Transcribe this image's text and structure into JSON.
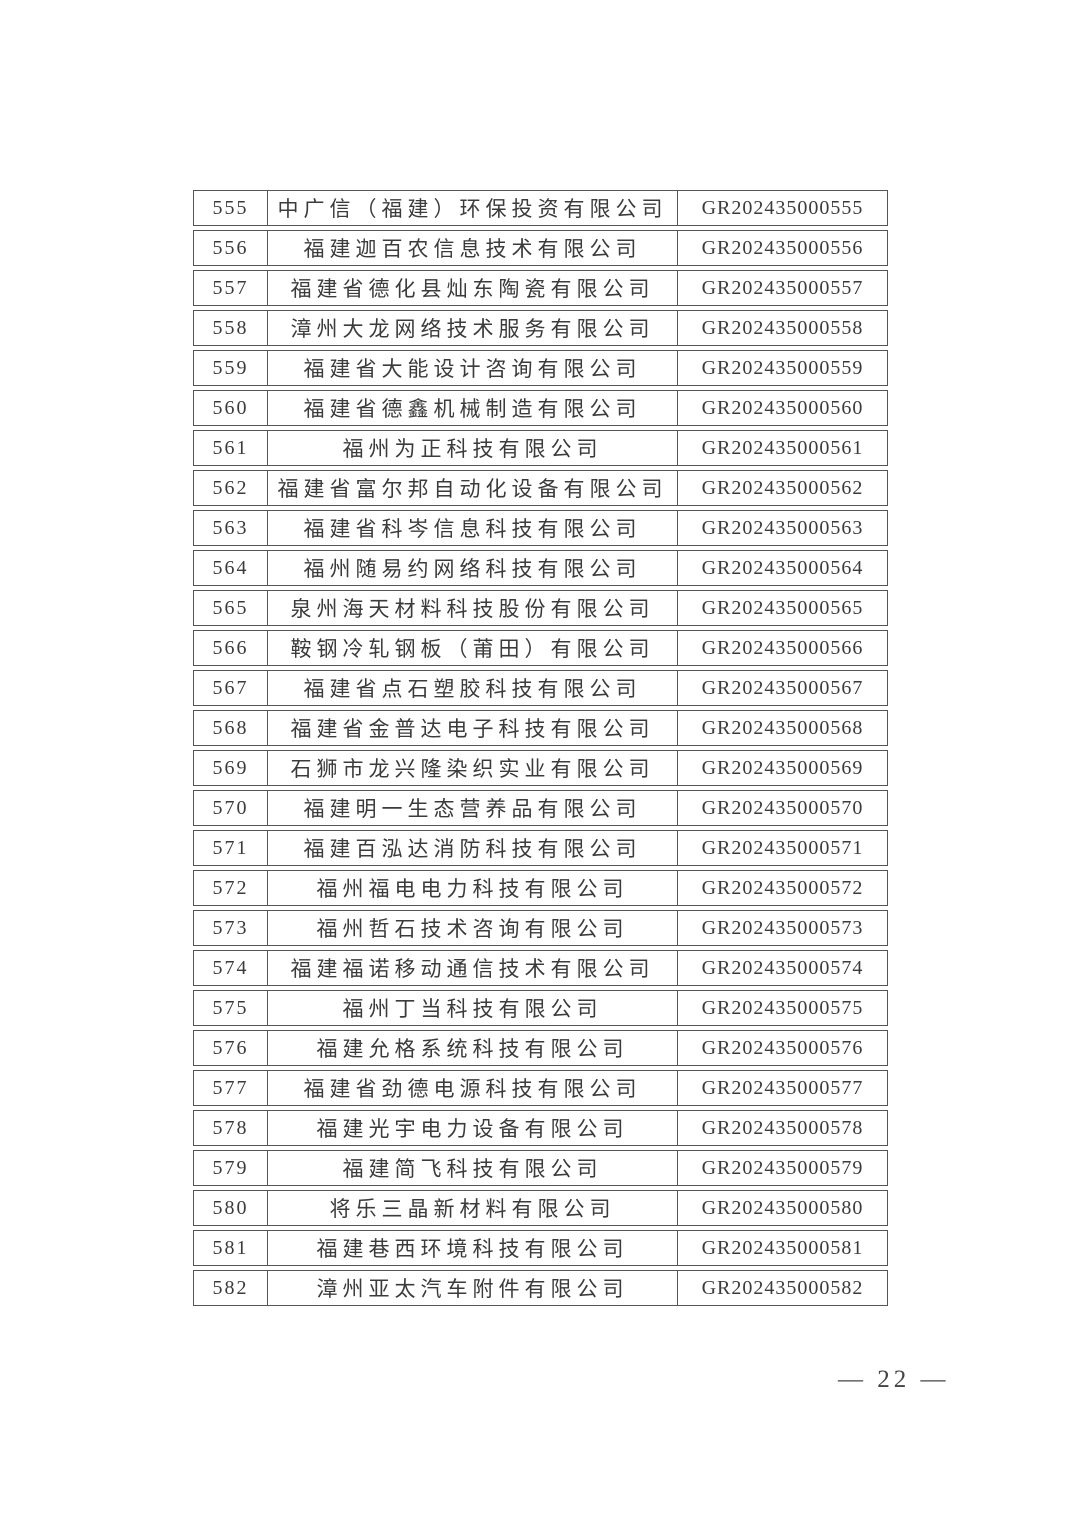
{
  "document": {
    "type": "certified-enterprise-roster-page",
    "text_color": "#3b3b3b",
    "border_color": "#555555",
    "background_color": "#ffffff"
  },
  "table": {
    "columns": [
      "serial_number",
      "company_name",
      "credential_code"
    ],
    "rows": [
      {
        "no": "555",
        "name": "中广信（福建）环保投资有限公司",
        "code": "GR202435000555"
      },
      {
        "no": "556",
        "name": "福建迦百农信息技术有限公司",
        "code": "GR202435000556"
      },
      {
        "no": "557",
        "name": "福建省德化县灿东陶瓷有限公司",
        "code": "GR202435000557"
      },
      {
        "no": "558",
        "name": "漳州大龙网络技术服务有限公司",
        "code": "GR202435000558"
      },
      {
        "no": "559",
        "name": "福建省大能设计咨询有限公司",
        "code": "GR202435000559"
      },
      {
        "no": "560",
        "name": "福建省德鑫机械制造有限公司",
        "code": "GR202435000560"
      },
      {
        "no": "561",
        "name": "福州为正科技有限公司",
        "code": "GR202435000561"
      },
      {
        "no": "562",
        "name": "福建省富尔邦自动化设备有限公司",
        "code": "GR202435000562"
      },
      {
        "no": "563",
        "name": "福建省科岑信息科技有限公司",
        "code": "GR202435000563"
      },
      {
        "no": "564",
        "name": "福州随易约网络科技有限公司",
        "code": "GR202435000564"
      },
      {
        "no": "565",
        "name": "泉州海天材料科技股份有限公司",
        "code": "GR202435000565"
      },
      {
        "no": "566",
        "name": "鞍钢冷轧钢板（莆田）有限公司",
        "code": "GR202435000566"
      },
      {
        "no": "567",
        "name": "福建省点石塑胶科技有限公司",
        "code": "GR202435000567"
      },
      {
        "no": "568",
        "name": "福建省金普达电子科技有限公司",
        "code": "GR202435000568"
      },
      {
        "no": "569",
        "name": "石狮市龙兴隆染织实业有限公司",
        "code": "GR202435000569"
      },
      {
        "no": "570",
        "name": "福建明一生态营养品有限公司",
        "code": "GR202435000570"
      },
      {
        "no": "571",
        "name": "福建百泓达消防科技有限公司",
        "code": "GR202435000571"
      },
      {
        "no": "572",
        "name": "福州福电电力科技有限公司",
        "code": "GR202435000572"
      },
      {
        "no": "573",
        "name": "福州哲石技术咨询有限公司",
        "code": "GR202435000573"
      },
      {
        "no": "574",
        "name": "福建福诺移动通信技术有限公司",
        "code": "GR202435000574"
      },
      {
        "no": "575",
        "name": "福州丁当科技有限公司",
        "code": "GR202435000575"
      },
      {
        "no": "576",
        "name": "福建允格系统科技有限公司",
        "code": "GR202435000576"
      },
      {
        "no": "577",
        "name": "福建省劲德电源科技有限公司",
        "code": "GR202435000577"
      },
      {
        "no": "578",
        "name": "福建光宇电力设备有限公司",
        "code": "GR202435000578"
      },
      {
        "no": "579",
        "name": "福建简飞科技有限公司",
        "code": "GR202435000579"
      },
      {
        "no": "580",
        "name": "将乐三晶新材料有限公司",
        "code": "GR202435000580"
      },
      {
        "no": "581",
        "name": "福建巷西环境科技有限公司",
        "code": "GR202435000581"
      },
      {
        "no": "582",
        "name": "漳州亚太汽车附件有限公司",
        "code": "GR202435000582"
      }
    ]
  },
  "footer": {
    "page_number": "22",
    "page_label": "— 22 —"
  }
}
